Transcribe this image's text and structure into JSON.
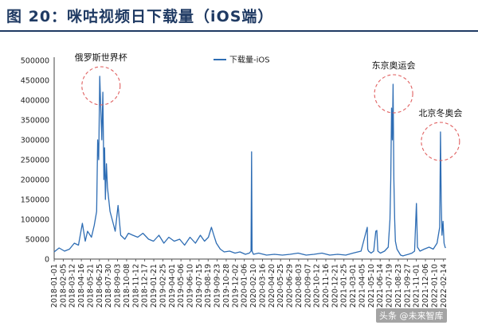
{
  "figure_title": "图 20：咪咕视频日下载量（iOS端）",
  "watermark": "头条 @未来智库",
  "chart_data": {
    "type": "line",
    "title": "",
    "xlabel": "",
    "ylabel": "",
    "ylim": [
      0,
      500000
    ],
    "yticks": [
      0,
      50000,
      100000,
      150000,
      200000,
      250000,
      300000,
      350000,
      400000,
      450000,
      500000
    ],
    "grid": false,
    "legend_position": "top-center",
    "line_color": "#2e6db4",
    "x_tick_labels": [
      "2018-01-01",
      "2018-02-05",
      "2018-03-12",
      "2018-04-16",
      "2018-05-21",
      "2018-06-25",
      "2018-07-30",
      "2018-09-03",
      "2018-10-08",
      "2018-11-12",
      "2018-12-17",
      "2019-01-21",
      "2019-02-25",
      "2019-04-01",
      "2019-05-06",
      "2019-06-10",
      "2019-07-15",
      "2019-08-19",
      "2019-09-23",
      "2019-10-28",
      "2019-12-02",
      "2020-01-06",
      "2020-02-10",
      "2020-03-16",
      "2020-04-20",
      "2020-05-25",
      "2020-06-29",
      "2020-08-03",
      "2020-09-07",
      "2020-10-12",
      "2020-11-16",
      "2020-12-21",
      "2021-01-25",
      "2021-03-01",
      "2021-04-05",
      "2021-05-10",
      "2021-06-14",
      "2021-07-19",
      "2021-08-23",
      "2021-09-27",
      "2021-11-01",
      "2021-12-06",
      "2022-01-10",
      "2022-02-14"
    ],
    "series": [
      {
        "name": "下载量-iOS",
        "x": [
          "2018-01-01",
          "2018-01-20",
          "2018-02-10",
          "2018-03-01",
          "2018-03-20",
          "2018-04-05",
          "2018-04-20",
          "2018-05-01",
          "2018-05-10",
          "2018-05-25",
          "2018-06-05",
          "2018-06-14",
          "2018-06-18",
          "2018-06-22",
          "2018-06-26",
          "2018-06-30",
          "2018-07-04",
          "2018-07-08",
          "2018-07-12",
          "2018-07-15",
          "2018-07-18",
          "2018-07-22",
          "2018-07-26",
          "2018-08-05",
          "2018-08-15",
          "2018-08-25",
          "2018-09-05",
          "2018-09-15",
          "2018-10-01",
          "2018-10-15",
          "2018-11-01",
          "2018-11-20",
          "2018-12-10",
          "2019-01-01",
          "2019-01-20",
          "2019-02-10",
          "2019-03-01",
          "2019-03-20",
          "2019-04-10",
          "2019-05-01",
          "2019-05-20",
          "2019-06-10",
          "2019-07-01",
          "2019-07-20",
          "2019-08-05",
          "2019-08-20",
          "2019-09-01",
          "2019-09-10",
          "2019-09-20",
          "2019-10-05",
          "2019-10-20",
          "2019-11-10",
          "2019-12-01",
          "2019-12-20",
          "2020-01-10",
          "2020-01-25",
          "2020-02-01",
          "2020-02-03",
          "2020-02-05",
          "2020-02-10",
          "2020-03-01",
          "2020-04-01",
          "2020-05-01",
          "2020-06-01",
          "2020-07-01",
          "2020-08-01",
          "2020-09-01",
          "2020-10-01",
          "2020-11-01",
          "2020-12-01",
          "2021-01-01",
          "2021-02-01",
          "2021-03-01",
          "2021-04-01",
          "2021-04-25",
          "2021-04-27",
          "2021-04-30",
          "2021-05-10",
          "2021-05-20",
          "2021-05-28",
          "2021-06-01",
          "2021-06-05",
          "2021-06-15",
          "2021-07-01",
          "2021-07-15",
          "2021-07-22",
          "2021-07-25",
          "2021-07-28",
          "2021-07-31",
          "2021-08-03",
          "2021-08-06",
          "2021-08-09",
          "2021-08-12",
          "2021-08-18",
          "2021-09-01",
          "2021-09-10",
          "2021-09-20",
          "2021-10-01",
          "2021-10-15",
          "2021-10-25",
          "2021-11-01",
          "2021-11-05",
          "2021-11-15",
          "2021-12-01",
          "2021-12-20",
          "2022-01-05",
          "2022-01-20",
          "2022-01-30",
          "2022-02-02",
          "2022-02-05",
          "2022-02-08",
          "2022-02-12",
          "2022-02-16",
          "2022-02-20",
          "2022-02-22"
        ],
        "y": [
          18000,
          28000,
          20000,
          25000,
          40000,
          35000,
          90000,
          45000,
          70000,
          55000,
          85000,
          120000,
          300000,
          250000,
          460000,
          380000,
          300000,
          420000,
          200000,
          280000,
          150000,
          240000,
          180000,
          120000,
          95000,
          70000,
          135000,
          60000,
          50000,
          65000,
          60000,
          55000,
          65000,
          50000,
          45000,
          60000,
          40000,
          55000,
          45000,
          50000,
          35000,
          55000,
          40000,
          60000,
          45000,
          55000,
          80000,
          60000,
          40000,
          25000,
          18000,
          20000,
          15000,
          18000,
          12000,
          15000,
          20000,
          270000,
          20000,
          12000,
          15000,
          10000,
          12000,
          10000,
          12000,
          15000,
          10000,
          12000,
          15000,
          10000,
          12000,
          10000,
          15000,
          20000,
          80000,
          25000,
          20000,
          15000,
          20000,
          70000,
          72000,
          20000,
          15000,
          20000,
          30000,
          100000,
          200000,
          380000,
          300000,
          440000,
          200000,
          100000,
          45000,
          25000,
          10000,
          8000,
          10000,
          12000,
          15000,
          20000,
          140000,
          30000,
          20000,
          25000,
          30000,
          25000,
          40000,
          80000,
          320000,
          150000,
          60000,
          95000,
          40000,
          30000,
          28000
        ]
      }
    ],
    "annotations": [
      {
        "text": "俄罗斯世界杯",
        "x": "2018-07-01",
        "y": 460000
      },
      {
        "text": "东京奥运会",
        "x": "2021-08-05",
        "y": 440000
      },
      {
        "text": "北京冬奥会",
        "x": "2022-02-02",
        "y": 320000
      }
    ]
  }
}
